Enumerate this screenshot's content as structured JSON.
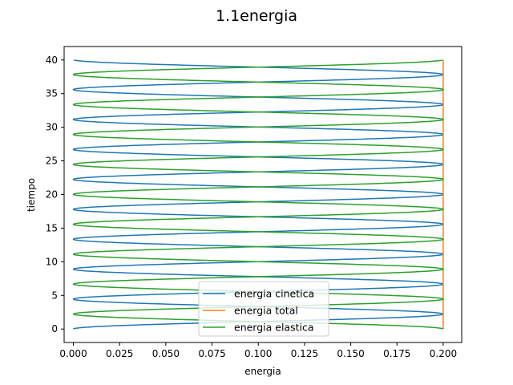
{
  "chart_data": {
    "type": "line",
    "title": "1.1energia",
    "xlabel": "energia",
    "ylabel": "tiempo",
    "xlim": [
      -0.005,
      0.21
    ],
    "ylim": [
      -2,
      42
    ],
    "xticks": [
      0.0,
      0.025,
      0.05,
      0.075,
      0.1,
      0.125,
      0.15,
      0.175,
      0.2
    ],
    "xtick_labels": [
      "0.000",
      "0.025",
      "0.050",
      "0.075",
      "0.100",
      "0.125",
      "0.150",
      "0.175",
      "0.200"
    ],
    "yticks": [
      0,
      5,
      10,
      15,
      20,
      25,
      30,
      35,
      40
    ],
    "ytick_labels": [
      "0",
      "5",
      "10",
      "15",
      "20",
      "25",
      "30",
      "35",
      "40"
    ],
    "grid": false,
    "legend_position": "lower-center",
    "total_energy": 0.2,
    "oscillation_period": 4.45,
    "t_range": [
      0,
      40
    ],
    "series": [
      {
        "name": "energia cinetica",
        "color": "#1f77b4",
        "kind": "kinetic"
      },
      {
        "name": "energia total",
        "color": "#ff7f0e",
        "kind": "total"
      },
      {
        "name": "energia elastica",
        "color": "#2ca02c",
        "kind": "elastic"
      }
    ]
  }
}
